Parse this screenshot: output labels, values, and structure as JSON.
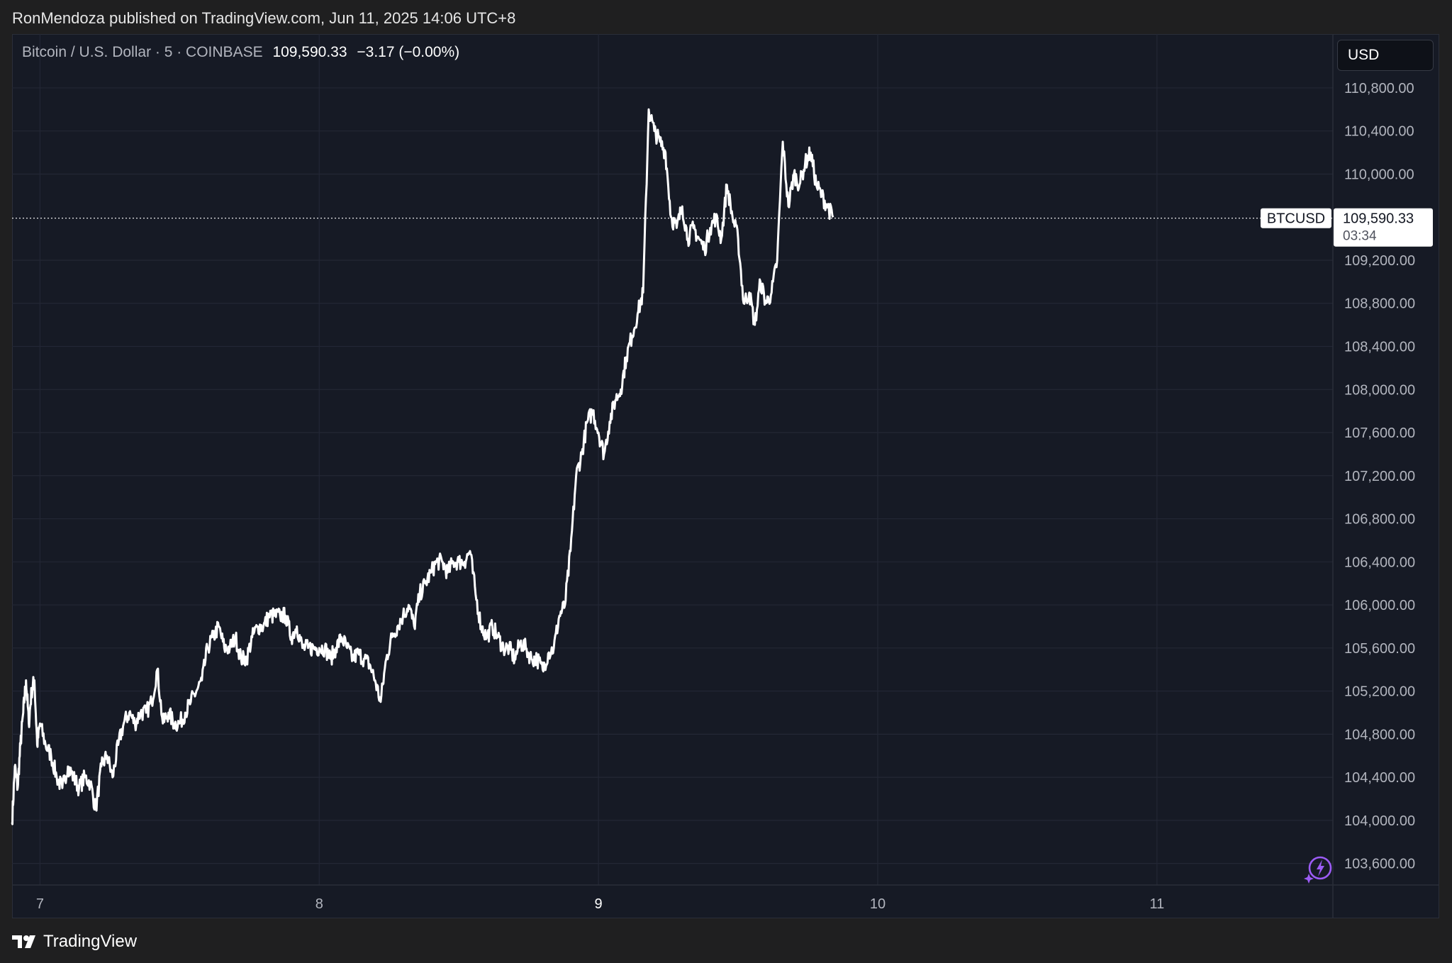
{
  "header": {
    "published_text": "RonMendoza published on TradingView.com, Jun 11, 2025 14:06 UTC+8"
  },
  "legend": {
    "symbol_text": "Bitcoin / U.S. Dollar · 5 · COINBASE",
    "last_price": "109,590.33",
    "change_text": "−3.17 (−0.00%)"
  },
  "currency_button": "USD",
  "price_label": {
    "ticker": "BTCUSD",
    "price": "109,590.33",
    "countdown": "03:34"
  },
  "footer": {
    "brand": "TradingView"
  },
  "icons": {
    "footer_logo": "tradingview-logo-icon",
    "bolt": "lightning-bolt-icon"
  },
  "colors": {
    "line": "#ffffff",
    "background": "#161a25",
    "accent": "#9c5cf6"
  },
  "chart_data": {
    "type": "line",
    "title": "",
    "xlabel": "",
    "ylabel": "",
    "x_ticks": [
      "7",
      "8",
      "9",
      "10",
      "11"
    ],
    "y_ticks": [
      "110,800.00",
      "110,400.00",
      "110,000.00",
      "109,200.00",
      "108,800.00",
      "108,400.00",
      "108,000.00",
      "107,600.00",
      "107,200.00",
      "106,800.00",
      "106,400.00",
      "106,000.00",
      "105,600.00",
      "105,200.00",
      "104,800.00",
      "104,400.00",
      "104,000.00",
      "103,600.00"
    ],
    "ylim": [
      103400,
      111300
    ],
    "xlim": [
      6.9,
      11.63
    ],
    "current_price": 109590.33,
    "grid": true,
    "series": [
      {
        "values": [
          [
            6.9,
            103980
          ],
          [
            6.91,
            104500
          ],
          [
            6.92,
            104300
          ],
          [
            6.93,
            104700
          ],
          [
            6.94,
            105000
          ],
          [
            6.95,
            105300
          ],
          [
            6.96,
            104900
          ],
          [
            6.97,
            105200
          ],
          [
            6.98,
            105300
          ],
          [
            6.99,
            104700
          ],
          [
            7.0,
            104900
          ],
          [
            7.02,
            104700
          ],
          [
            7.04,
            104600
          ],
          [
            7.06,
            104400
          ],
          [
            7.08,
            104300
          ],
          [
            7.1,
            104500
          ],
          [
            7.12,
            104400
          ],
          [
            7.14,
            104300
          ],
          [
            7.16,
            104400
          ],
          [
            7.18,
            104350
          ],
          [
            7.2,
            104100
          ],
          [
            7.22,
            104500
          ],
          [
            7.24,
            104600
          ],
          [
            7.26,
            104400
          ],
          [
            7.28,
            104700
          ],
          [
            7.3,
            104900
          ],
          [
            7.32,
            105000
          ],
          [
            7.34,
            104900
          ],
          [
            7.36,
            105000
          ],
          [
            7.38,
            105000
          ],
          [
            7.4,
            105100
          ],
          [
            7.42,
            105400
          ],
          [
            7.44,
            104900
          ],
          [
            7.46,
            105000
          ],
          [
            7.48,
            104900
          ],
          [
            7.5,
            104900
          ],
          [
            7.52,
            105000
          ],
          [
            7.54,
            105100
          ],
          [
            7.56,
            105200
          ],
          [
            7.58,
            105300
          ],
          [
            7.6,
            105600
          ],
          [
            7.62,
            105700
          ],
          [
            7.64,
            105800
          ],
          [
            7.66,
            105600
          ],
          [
            7.68,
            105600
          ],
          [
            7.7,
            105700
          ],
          [
            7.72,
            105500
          ],
          [
            7.74,
            105500
          ],
          [
            7.76,
            105700
          ],
          [
            7.78,
            105800
          ],
          [
            7.8,
            105800
          ],
          [
            7.82,
            105900
          ],
          [
            7.84,
            105900
          ],
          [
            7.86,
            105900
          ],
          [
            7.88,
            105900
          ],
          [
            7.9,
            105700
          ],
          [
            7.92,
            105800
          ],
          [
            7.94,
            105600
          ],
          [
            7.96,
            105600
          ],
          [
            7.98,
            105600
          ],
          [
            8.0,
            105600
          ],
          [
            8.02,
            105600
          ],
          [
            8.04,
            105500
          ],
          [
            8.06,
            105600
          ],
          [
            8.08,
            105700
          ],
          [
            8.1,
            105600
          ],
          [
            8.12,
            105500
          ],
          [
            8.14,
            105550
          ],
          [
            8.16,
            105500
          ],
          [
            8.18,
            105450
          ],
          [
            8.2,
            105300
          ],
          [
            8.22,
            105100
          ],
          [
            8.24,
            105500
          ],
          [
            8.26,
            105700
          ],
          [
            8.28,
            105800
          ],
          [
            8.3,
            105900
          ],
          [
            8.32,
            106000
          ],
          [
            8.34,
            105800
          ],
          [
            8.36,
            106100
          ],
          [
            8.38,
            106200
          ],
          [
            8.4,
            106300
          ],
          [
            8.42,
            106400
          ],
          [
            8.44,
            106400
          ],
          [
            8.46,
            106300
          ],
          [
            8.48,
            106400
          ],
          [
            8.5,
            106400
          ],
          [
            8.52,
            106400
          ],
          [
            8.54,
            106500
          ],
          [
            8.56,
            106100
          ],
          [
            8.58,
            105800
          ],
          [
            8.6,
            105700
          ],
          [
            8.62,
            105800
          ],
          [
            8.64,
            105700
          ],
          [
            8.66,
            105600
          ],
          [
            8.68,
            105600
          ],
          [
            8.7,
            105500
          ],
          [
            8.72,
            105650
          ],
          [
            8.74,
            105600
          ],
          [
            8.76,
            105500
          ],
          [
            8.78,
            105500
          ],
          [
            8.8,
            105400
          ],
          [
            8.82,
            105550
          ],
          [
            8.84,
            105600
          ],
          [
            8.86,
            105900
          ],
          [
            8.88,
            106000
          ],
          [
            8.9,
            106500
          ],
          [
            8.92,
            107200
          ],
          [
            8.94,
            107400
          ],
          [
            8.96,
            107700
          ],
          [
            8.98,
            107800
          ],
          [
            9.0,
            107600
          ],
          [
            9.02,
            107400
          ],
          [
            9.04,
            107700
          ],
          [
            9.06,
            107900
          ],
          [
            9.08,
            108000
          ],
          [
            9.1,
            108300
          ],
          [
            9.12,
            108500
          ],
          [
            9.14,
            108700
          ],
          [
            9.16,
            108900
          ],
          [
            9.18,
            110600
          ],
          [
            9.2,
            110400
          ],
          [
            9.22,
            110300
          ],
          [
            9.24,
            110200
          ],
          [
            9.26,
            109600
          ],
          [
            9.28,
            109500
          ],
          [
            9.3,
            109700
          ],
          [
            9.32,
            109400
          ],
          [
            9.34,
            109500
          ],
          [
            9.36,
            109400
          ],
          [
            9.38,
            109300
          ],
          [
            9.4,
            109500
          ],
          [
            9.42,
            109600
          ],
          [
            9.44,
            109400
          ],
          [
            9.46,
            109900
          ],
          [
            9.48,
            109600
          ],
          [
            9.5,
            109400
          ],
          [
            9.52,
            108800
          ],
          [
            9.54,
            108900
          ],
          [
            9.56,
            108600
          ],
          [
            9.58,
            109000
          ],
          [
            9.6,
            108800
          ],
          [
            9.62,
            108900
          ],
          [
            9.64,
            109200
          ],
          [
            9.66,
            110300
          ],
          [
            9.68,
            109700
          ],
          [
            9.7,
            110000
          ],
          [
            9.72,
            109900
          ],
          [
            9.74,
            110100
          ],
          [
            9.76,
            110200
          ],
          [
            9.78,
            109900
          ],
          [
            9.8,
            109800
          ],
          [
            9.82,
            109700
          ],
          [
            9.84,
            109600
          ]
        ]
      }
    ]
  }
}
